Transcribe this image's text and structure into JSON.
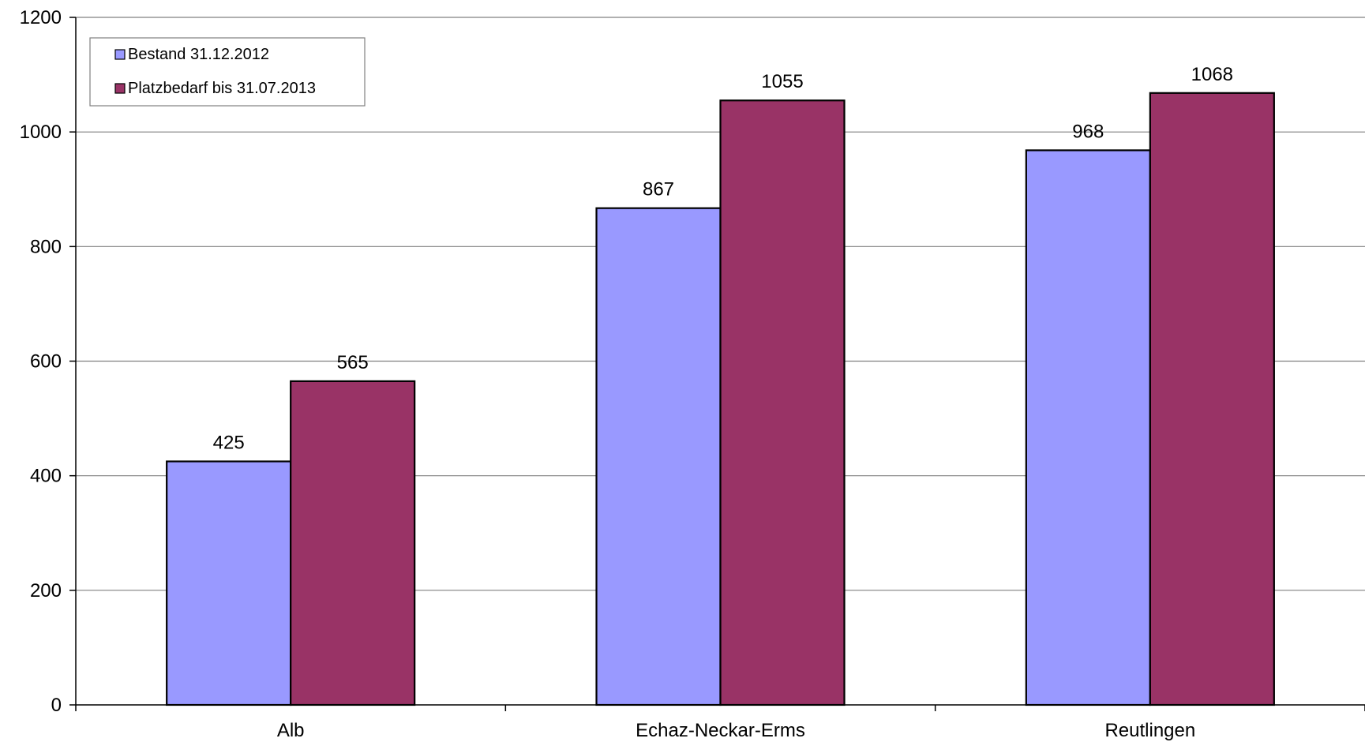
{
  "chart_data": {
    "type": "bar",
    "categories": [
      "Alb",
      "Echaz-Neckar-Erms",
      "Reutlingen"
    ],
    "series": [
      {
        "name": "Bestand 31.12.2012",
        "values": [
          425,
          867,
          968
        ],
        "color": "#9999ff"
      },
      {
        "name": "Platzbedarf bis 31.07.2013",
        "values": [
          565,
          1055,
          1068
        ],
        "color": "#993366"
      }
    ],
    "title": "",
    "xlabel": "",
    "ylabel": "",
    "ylim": [
      0,
      1200
    ],
    "yticks": [
      0,
      200,
      400,
      600,
      800,
      1000,
      1200
    ],
    "grid": true,
    "legend_position": "top-left",
    "data_labels": true
  }
}
